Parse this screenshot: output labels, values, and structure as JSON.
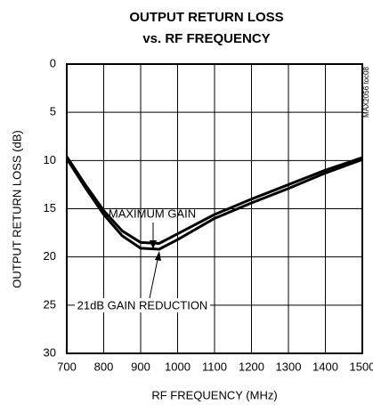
{
  "chart_data": {
    "type": "line",
    "title": [
      "OUTPUT RETURN LOSS",
      "vs. RF FREQUENCY"
    ],
    "x_label": "RF FREQUENCY (MHz)",
    "y_label": "OUTPUT RETURN LOSS (dB)",
    "watermark": "MAX2056 toc08",
    "x": [
      700,
      750,
      800,
      850,
      900,
      950,
      1000,
      1100,
      1200,
      1300,
      1400,
      1500
    ],
    "series": [
      {
        "name": "MAXIMUM GAIN",
        "color": "#000000",
        "values": [
          9.6,
          12.5,
          15.2,
          17.3,
          18.5,
          18.6,
          17.6,
          15.6,
          14.0,
          12.5,
          11.0,
          9.7
        ]
      },
      {
        "name": "21dB GAIN REDUCTION",
        "color": "#000000",
        "values": [
          9.8,
          12.8,
          15.6,
          17.8,
          19.1,
          19.2,
          18.2,
          16.0,
          14.4,
          12.9,
          11.3,
          9.9
        ]
      }
    ],
    "xlim": [
      700,
      1500
    ],
    "xticks": [
      700,
      800,
      900,
      1000,
      1100,
      1200,
      1300,
      1400,
      1500
    ],
    "ylim": [
      30,
      0
    ],
    "yticks": [
      0,
      5,
      10,
      15,
      20,
      25,
      30
    ],
    "grid": true
  }
}
